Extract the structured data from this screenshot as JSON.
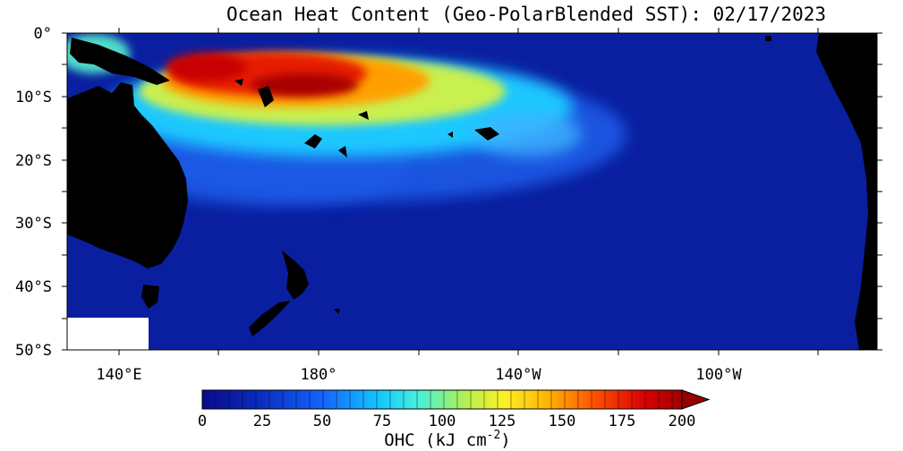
{
  "title": "Ocean Heat Content (Geo-PolarBlended SST): 02/17/2023",
  "lat_labels": [
    "0°",
    "10°S",
    "20°S",
    "30°S",
    "40°S",
    "50°S"
  ],
  "lon_labels": [
    "140°E",
    "180°",
    "140°W",
    "100°W"
  ],
  "colorbar": {
    "ticks": [
      "0",
      "25",
      "50",
      "75",
      "100",
      "125",
      "150",
      "175",
      "200"
    ],
    "label": "OHC (kJ cm",
    "label_exp": "-2",
    "label_close": ")"
  },
  "colors": {
    "land": "#000000",
    "nodata": "#ffffff",
    "ocean_low": "#0a1fa0",
    "ocean_mid": "#1e78ff",
    "ocean_hot": "#c80000"
  }
}
